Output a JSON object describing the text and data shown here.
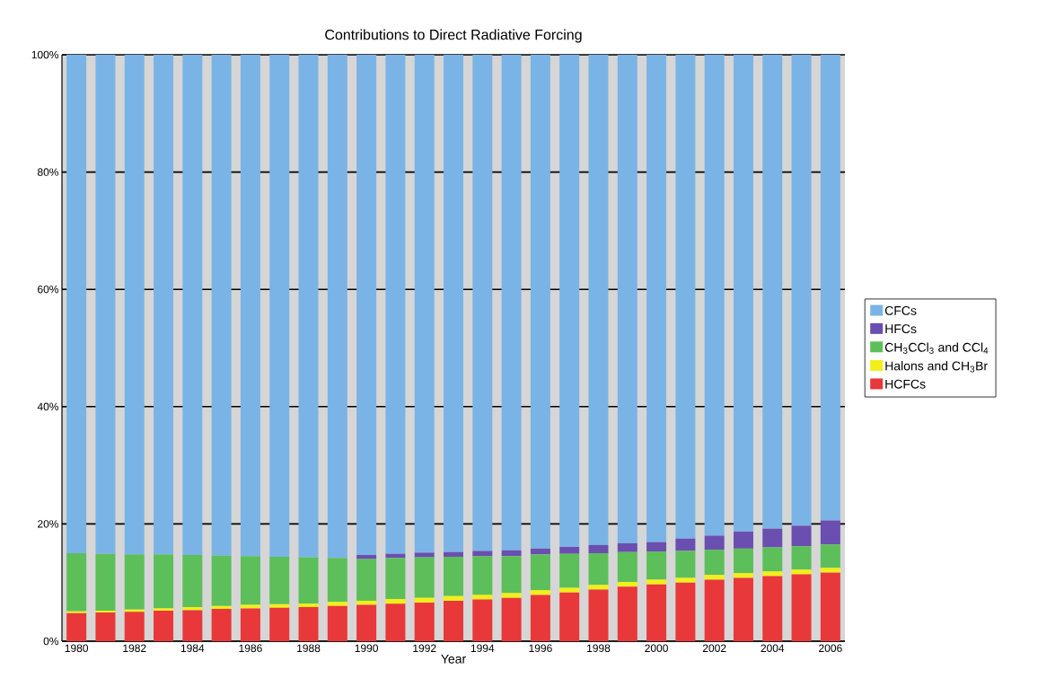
{
  "chart_data": {
    "type": "bar",
    "stacked": true,
    "title": "Contributions to Direct Radiative Forcing",
    "xlabel": "Year",
    "categories": [
      "1980",
      null,
      "1982",
      null,
      "1984",
      null,
      "1986",
      null,
      "1988",
      null,
      "1990",
      null,
      "1992",
      null,
      "1994",
      null,
      "1996",
      null,
      "1998",
      null,
      "2000",
      null,
      "2002",
      null,
      "2004",
      null,
      "2006"
    ],
    "series": [
      {
        "name": "HCFCs",
        "color": "#e8383a",
        "values": [
          4.8,
          4.9,
          5.0,
          5.2,
          5.3,
          5.5,
          5.6,
          5.7,
          5.8,
          6.0,
          6.2,
          6.4,
          6.6,
          6.9,
          7.1,
          7.4,
          7.9,
          8.3,
          8.8,
          9.3,
          9.7,
          10.0,
          10.5,
          10.8,
          11.1,
          11.4,
          11.7
        ]
      },
      {
        "name": "Halons and CH$_{3}$Br",
        "color": "#f2ef1a",
        "values": [
          0.3,
          0.3,
          0.4,
          0.4,
          0.5,
          0.5,
          0.6,
          0.6,
          0.6,
          0.7,
          0.7,
          0.8,
          0.8,
          0.8,
          0.8,
          0.8,
          0.8,
          0.8,
          0.8,
          0.8,
          0.8,
          0.8,
          0.8,
          0.8,
          0.8,
          0.8,
          0.8
        ]
      },
      {
        "name": "CH$_{3}$CCl$_{3}$ and CCl$_{4}$",
        "color": "#5cbf5a",
        "values": [
          9.9,
          9.7,
          9.4,
          9.2,
          8.9,
          8.6,
          8.3,
          8.1,
          7.9,
          7.5,
          7.1,
          7.0,
          6.9,
          6.7,
          6.6,
          6.3,
          6.1,
          5.8,
          5.4,
          5.1,
          4.8,
          4.6,
          4.3,
          4.2,
          4.1,
          4.0,
          4.0
        ]
      },
      {
        "name": "HFCs",
        "color": "#6a4fb0",
        "values": [
          0,
          0,
          0,
          0,
          0,
          0,
          0,
          0,
          0,
          0,
          0.7,
          0.7,
          0.8,
          0.8,
          0.9,
          1.0,
          1.0,
          1.2,
          1.4,
          1.5,
          1.6,
          2.1,
          2.4,
          2.9,
          3.2,
          3.5,
          4.1
        ]
      },
      {
        "name": "CFCs",
        "color": "#7ab4e6",
        "values": [
          85.0,
          85.1,
          85.2,
          85.2,
          85.3,
          85.4,
          85.5,
          85.6,
          85.7,
          85.8,
          85.3,
          85.1,
          84.9,
          84.8,
          84.6,
          84.5,
          84.2,
          83.9,
          83.6,
          83.3,
          83.1,
          82.5,
          82.0,
          81.3,
          80.8,
          80.3,
          79.4
        ]
      }
    ],
    "ylim": [
      0,
      100
    ],
    "yticks": [
      {
        "value": 0,
        "label": "0%"
      },
      {
        "value": 20,
        "label": "20%"
      },
      {
        "value": 40,
        "label": "40%"
      },
      {
        "value": 60,
        "label": "60%"
      },
      {
        "value": 80,
        "label": "80%"
      },
      {
        "value": 100,
        "label": "100%"
      }
    ],
    "grid": "y",
    "legend": "right"
  }
}
